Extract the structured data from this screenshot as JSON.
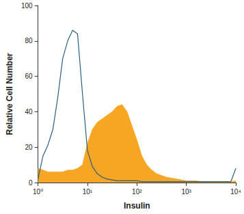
{
  "chart_data": {
    "type": "line",
    "x_label": "Insulin",
    "y_label": "Relative Cell Number",
    "log": "x",
    "grid": false,
    "x": [
      1,
      1.26,
      1.58,
      2,
      2.51,
      3.16,
      3.98,
      5.01,
      6.31,
      7.94,
      10,
      12.6,
      15.8,
      20,
      25.1,
      31.6,
      39.8,
      50.1,
      63.1,
      79.4,
      100,
      126,
      158,
      200,
      251,
      316,
      398,
      501,
      631,
      794,
      1000,
      1259,
      1585,
      1995,
      2512,
      3162,
      3981,
      5012,
      6310,
      7943,
      10000
    ],
    "series": [
      {
        "type": "area",
        "color": "#f7a623",
        "values": [
          8,
          7,
          6,
          6,
          6,
          6,
          7,
          7,
          8,
          10,
          22,
          30,
          34,
          36,
          38,
          40,
          43,
          44,
          40,
          32,
          24,
          15,
          10,
          7,
          5,
          4,
          3,
          2.5,
          2,
          1.5,
          1,
          1,
          1,
          0.5,
          0.5,
          0.5,
          0.5,
          0.5,
          0.5,
          0.5,
          1
        ]
      },
      {
        "type": "line",
        "color": "#2b5d80",
        "values": [
          2,
          15,
          21,
          30,
          48,
          70,
          80,
          86,
          84,
          50,
          18,
          9,
          5,
          3,
          2,
          1.5,
          1,
          1,
          1,
          1,
          1,
          0.5,
          0.5,
          0.5,
          0.5,
          0.5,
          0.5,
          0.5,
          0.5,
          0.5,
          0.5,
          0.5,
          0.5,
          0.5,
          0.5,
          0.5,
          0.5,
          0.5,
          0.5,
          0.5,
          8
        ]
      }
    ],
    "xlim": [
      1,
      10000
    ],
    "xticks": [
      {
        "value": 1,
        "label": "10⁰"
      },
      {
        "value": 10,
        "label": "10¹"
      },
      {
        "value": 100,
        "label": "10²"
      },
      {
        "value": 1000,
        "label": "10³"
      },
      {
        "value": 10000,
        "label": "10⁴"
      }
    ],
    "ylim": [
      0,
      100
    ],
    "yticks": [
      0,
      20,
      40,
      60,
      80,
      100
    ]
  }
}
